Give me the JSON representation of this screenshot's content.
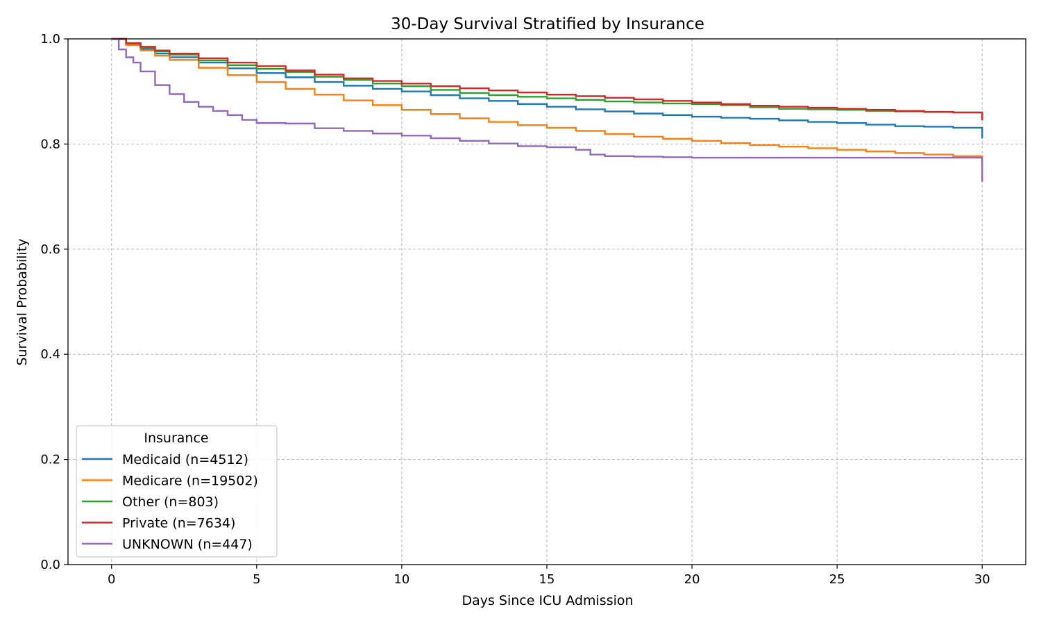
{
  "chart_data": {
    "type": "line",
    "title": "30-Day Survival Stratified by Insurance",
    "xlabel": "Days Since ICU Admission",
    "ylabel": "Survival Probability",
    "xlim": [
      -1.5,
      31.5
    ],
    "ylim": [
      0.0,
      1.0
    ],
    "xticks": [
      0,
      5,
      10,
      15,
      20,
      25,
      30
    ],
    "yticks": [
      0.0,
      0.2,
      0.4,
      0.6,
      0.8,
      1.0
    ],
    "xtick_labels": [
      "0",
      "5",
      "10",
      "15",
      "20",
      "25",
      "30"
    ],
    "ytick_labels": [
      "0.0",
      "0.2",
      "0.4",
      "0.6",
      "0.8",
      "1.0"
    ],
    "grid": true,
    "legend": {
      "title": "Insurance",
      "placement": "lower-left"
    },
    "series": [
      {
        "name": "Medicaid (n=4512)",
        "color": "#1f77b4",
        "x": [
          0,
          0.5,
          1,
          1.5,
          2,
          3,
          4,
          5,
          6,
          7,
          8,
          9,
          10,
          11,
          12,
          13,
          14,
          15,
          16,
          17,
          18,
          19,
          20,
          21,
          22,
          23,
          24,
          25,
          26,
          27,
          28,
          29,
          30,
          30
        ],
        "y": [
          1.0,
          0.99,
          0.98,
          0.972,
          0.965,
          0.955,
          0.944,
          0.935,
          0.927,
          0.918,
          0.911,
          0.905,
          0.9,
          0.893,
          0.887,
          0.882,
          0.876,
          0.871,
          0.866,
          0.862,
          0.858,
          0.855,
          0.852,
          0.85,
          0.848,
          0.845,
          0.842,
          0.84,
          0.837,
          0.834,
          0.833,
          0.831,
          0.83,
          0.811
        ]
      },
      {
        "name": "Medicare (n=19502)",
        "color": "#ff7f0e",
        "x": [
          0,
          0.5,
          1,
          1.5,
          2,
          3,
          4,
          5,
          6,
          7,
          8,
          9,
          10,
          11,
          12,
          13,
          14,
          15,
          16,
          17,
          18,
          19,
          20,
          21,
          22,
          23,
          24,
          25,
          26,
          27,
          28,
          29,
          30,
          30
        ],
        "y": [
          1.0,
          0.988,
          0.978,
          0.968,
          0.96,
          0.945,
          0.931,
          0.918,
          0.905,
          0.894,
          0.883,
          0.874,
          0.865,
          0.857,
          0.849,
          0.842,
          0.836,
          0.831,
          0.825,
          0.819,
          0.814,
          0.81,
          0.806,
          0.802,
          0.798,
          0.795,
          0.792,
          0.789,
          0.786,
          0.783,
          0.78,
          0.777,
          0.775,
          0.757
        ]
      },
      {
        "name": "Other (n=803)",
        "color": "#2ca02c",
        "x": [
          0,
          0.5,
          1,
          1.5,
          2,
          3,
          4,
          5,
          6,
          7,
          8,
          9,
          10,
          11,
          12,
          13,
          14,
          15,
          16,
          17,
          18,
          19,
          20,
          21,
          22,
          23,
          24,
          25,
          26,
          27,
          28,
          29,
          30,
          30
        ],
        "y": [
          1.0,
          0.992,
          0.983,
          0.976,
          0.97,
          0.959,
          0.95,
          0.943,
          0.937,
          0.928,
          0.922,
          0.915,
          0.91,
          0.903,
          0.897,
          0.893,
          0.89,
          0.887,
          0.884,
          0.881,
          0.879,
          0.877,
          0.876,
          0.874,
          0.87,
          0.867,
          0.866,
          0.865,
          0.863,
          0.862,
          0.861,
          0.86,
          0.86,
          0.848
        ]
      },
      {
        "name": "Private (n=7634)",
        "color": "#d62728",
        "x": [
          0,
          0.5,
          1,
          1.5,
          2,
          3,
          4,
          5,
          6,
          7,
          8,
          9,
          10,
          11,
          12,
          13,
          14,
          15,
          16,
          17,
          18,
          19,
          20,
          21,
          22,
          23,
          24,
          25,
          26,
          27,
          28,
          29,
          30,
          30
        ],
        "y": [
          1.0,
          0.992,
          0.985,
          0.978,
          0.972,
          0.963,
          0.955,
          0.948,
          0.94,
          0.932,
          0.925,
          0.92,
          0.915,
          0.91,
          0.906,
          0.902,
          0.898,
          0.894,
          0.891,
          0.888,
          0.885,
          0.882,
          0.879,
          0.876,
          0.873,
          0.871,
          0.869,
          0.867,
          0.865,
          0.863,
          0.861,
          0.86,
          0.859,
          0.845
        ]
      },
      {
        "name": "UNKNOWN (n=447)",
        "color": "#9467bd",
        "x": [
          0,
          0.25,
          0.5,
          0.75,
          1,
          1.5,
          2,
          2.5,
          3,
          3.5,
          4,
          4.5,
          5,
          6,
          7,
          8,
          9,
          10,
          11,
          12,
          13,
          14,
          15,
          16,
          16.5,
          17,
          18,
          19,
          20,
          22,
          24,
          26,
          28,
          30,
          30
        ],
        "y": [
          1.0,
          0.98,
          0.965,
          0.955,
          0.938,
          0.912,
          0.895,
          0.88,
          0.871,
          0.863,
          0.855,
          0.846,
          0.84,
          0.839,
          0.83,
          0.825,
          0.82,
          0.816,
          0.811,
          0.806,
          0.801,
          0.796,
          0.794,
          0.789,
          0.78,
          0.777,
          0.776,
          0.775,
          0.774,
          0.774,
          0.774,
          0.774,
          0.774,
          0.773,
          0.728
        ]
      }
    ]
  }
}
